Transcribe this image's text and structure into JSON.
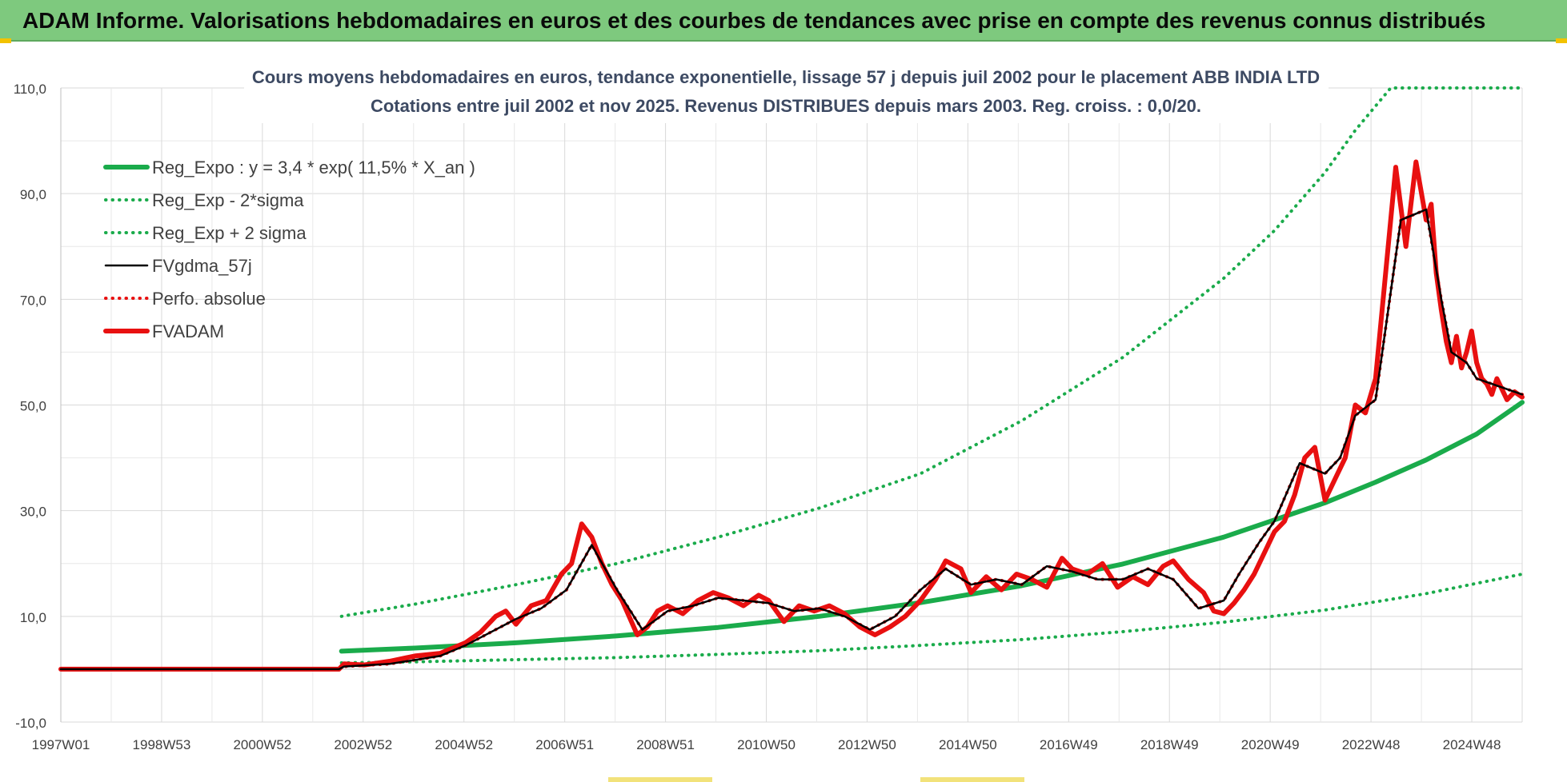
{
  "header": {
    "title": "ADAM Informe. Valorisations hebdomadaires en euros et des courbes de tendances avec prise en compte des revenus connus distribués"
  },
  "chart_data": {
    "type": "line",
    "title_line1": "Cours moyens hebdomadaires en euros, tendance exponentielle, lissage 57 j depuis juil 2002 pour le placement ABB INDIA LTD",
    "title_line2": "Cotations entre juil 2002 et nov 2025. Revenus DISTRIBUES depuis mars 2003. Reg. croiss. : 0,0/20.",
    "x_ticks": [
      "1997W01",
      "1998W53",
      "2000W52",
      "2002W52",
      "2004W52",
      "2006W51",
      "2008W51",
      "2010W50",
      "2012W50",
      "2014W50",
      "2016W49",
      "2018W49",
      "2020W49",
      "2022W48",
      "2024W48"
    ],
    "y_ticks": [
      "110,0",
      "90,0",
      "70,0",
      "50,0",
      "30,0",
      "10,0",
      "-10,0"
    ],
    "ylim": [
      -10,
      110
    ],
    "xlim": [
      1997.0,
      2025.9
    ],
    "grid": true,
    "legend_position": "top-left",
    "series": [
      {
        "name": "Reg_Expo : y = 3,4 * exp( 11,5% *  X_an )",
        "color": "#1aab4b",
        "style": "solid-thick",
        "x": [
          2002.55,
          2004.0,
          2006.0,
          2008.0,
          2010.0,
          2012.0,
          2014.0,
          2016.0,
          2018.0,
          2020.0,
          2022.0,
          2023.0,
          2024.0,
          2025.0,
          2025.9
        ],
        "y": [
          3.4,
          4.0,
          5.0,
          6.3,
          7.9,
          10.0,
          12.6,
          15.8,
          19.9,
          25.0,
          31.5,
          35.4,
          39.6,
          44.5,
          50.5
        ]
      },
      {
        "name": "Reg_Exp - 2*sigma",
        "color": "#1aab4b",
        "style": "dotted",
        "x": [
          2002.55,
          2004.0,
          2006.0,
          2008.0,
          2010.0,
          2012.0,
          2014.0,
          2016.0,
          2018.0,
          2020.0,
          2022.0,
          2024.0,
          2025.9
        ],
        "y": [
          1.2,
          1.4,
          1.8,
          2.2,
          2.8,
          3.5,
          4.5,
          5.6,
          7.1,
          8.9,
          11.2,
          14.3,
          18.0
        ]
      },
      {
        "name": "Reg_Exp + 2 sigma",
        "color": "#1aab4b",
        "style": "dotted",
        "x": [
          2002.55,
          2004.0,
          2006.0,
          2008.0,
          2010.0,
          2012.0,
          2014.0,
          2016.0,
          2018.0,
          2020.0,
          2021.0,
          2022.0,
          2022.6,
          2023.3,
          2025.9
        ],
        "y": [
          10.0,
          12.3,
          16.0,
          20.0,
          25.0,
          30.5,
          37.0,
          47.0,
          59.0,
          74.0,
          83.0,
          94.0,
          102.0,
          110.0,
          110.0
        ]
      },
      {
        "name": "FVgdma_57j",
        "color": "#000000",
        "style": "solid",
        "x": [
          1997.0,
          2002.5,
          2002.6,
          2003.5,
          2004.5,
          2005.0,
          2005.5,
          2006.0,
          2006.5,
          2007.0,
          2007.5,
          2008.0,
          2008.5,
          2009.0,
          2009.5,
          2010.0,
          2010.5,
          2011.0,
          2011.5,
          2012.0,
          2012.5,
          2013.0,
          2013.5,
          2014.0,
          2014.5,
          2015.0,
          2015.5,
          2016.0,
          2016.5,
          2017.0,
          2017.5,
          2018.0,
          2018.5,
          2019.0,
          2019.5,
          2020.0,
          2020.3,
          2020.7,
          2021.0,
          2021.5,
          2022.0,
          2022.3,
          2022.6,
          2023.0,
          2023.5,
          2024.0,
          2024.3,
          2024.5,
          2024.8,
          2025.0,
          2025.3,
          2025.6,
          2025.9
        ],
        "y": [
          0,
          0,
          0.5,
          1.0,
          2.5,
          4.5,
          7.0,
          9.5,
          11.5,
          15.0,
          23.5,
          15.0,
          7.5,
          11.0,
          12.0,
          13.5,
          13.0,
          12.5,
          11.0,
          11.5,
          10.0,
          7.5,
          10.0,
          15.0,
          19.0,
          16.0,
          17.0,
          16.0,
          19.5,
          18.5,
          17.0,
          17.0,
          19.0,
          17.0,
          11.5,
          13.0,
          18.0,
          24.0,
          28.0,
          39.0,
          37.0,
          40.0,
          48.0,
          51.0,
          85.0,
          87.0,
          70.0,
          60.0,
          58.0,
          55.0,
          54.0,
          53.0,
          52.0
        ]
      },
      {
        "name": "Perfo. absolue",
        "color": "#e81010",
        "style": "dotted",
        "x": [
          1997.0,
          2002.5,
          2002.6,
          2003.5,
          2004.5,
          2005.0,
          2005.5,
          2006.0,
          2006.5,
          2007.0,
          2007.5,
          2008.0,
          2008.5,
          2009.0,
          2009.5,
          2010.0,
          2010.5,
          2011.0,
          2011.5,
          2012.0,
          2012.5,
          2013.0,
          2013.5,
          2014.0,
          2014.5,
          2015.0,
          2015.5,
          2016.0,
          2016.5,
          2017.0,
          2017.5,
          2018.0,
          2018.5,
          2019.0,
          2019.5,
          2020.0,
          2020.3,
          2020.7,
          2021.0,
          2021.5,
          2022.0,
          2022.3,
          2022.6,
          2023.0,
          2023.5,
          2024.0,
          2024.3,
          2024.5,
          2024.8,
          2025.0,
          2025.3,
          2025.6,
          2025.9
        ],
        "y": [
          0,
          0,
          0.5,
          1.0,
          2.5,
          4.5,
          7.0,
          9.5,
          11.5,
          15.0,
          23.5,
          15.0,
          7.5,
          11.0,
          12.0,
          13.5,
          13.0,
          12.5,
          11.0,
          11.5,
          10.0,
          7.5,
          10.0,
          15.0,
          19.0,
          16.0,
          17.0,
          16.0,
          19.5,
          18.5,
          17.0,
          17.0,
          19.0,
          17.0,
          11.5,
          13.0,
          18.0,
          24.0,
          28.0,
          39.0,
          37.0,
          40.0,
          48.0,
          51.0,
          85.0,
          87.0,
          70.0,
          60.0,
          58.0,
          55.0,
          54.0,
          53.0,
          52.0
        ]
      },
      {
        "name": "FVADAM",
        "color": "#e81010",
        "style": "solid-thick",
        "x": [
          1997.0,
          2002.5,
          2002.6,
          2003.0,
          2003.5,
          2004.0,
          2004.5,
          2005.0,
          2005.3,
          2005.6,
          2005.8,
          2006.0,
          2006.3,
          2006.6,
          2006.9,
          2007.1,
          2007.3,
          2007.5,
          2007.7,
          2007.9,
          2008.1,
          2008.4,
          2008.6,
          2008.8,
          2009.0,
          2009.3,
          2009.6,
          2009.9,
          2010.2,
          2010.5,
          2010.8,
          2011.0,
          2011.3,
          2011.6,
          2011.9,
          2012.2,
          2012.5,
          2012.8,
          2013.1,
          2013.4,
          2013.7,
          2014.0,
          2014.3,
          2014.5,
          2014.8,
          2015.0,
          2015.3,
          2015.6,
          2015.9,
          2016.2,
          2016.5,
          2016.8,
          2017.0,
          2017.3,
          2017.6,
          2017.9,
          2018.2,
          2018.5,
          2018.8,
          2019.0,
          2019.3,
          2019.6,
          2019.8,
          2020.0,
          2020.2,
          2020.4,
          2020.6,
          2020.8,
          2021.0,
          2021.2,
          2021.4,
          2021.6,
          2021.8,
          2022.0,
          2022.2,
          2022.4,
          2022.6,
          2022.8,
          2023.0,
          2023.2,
          2023.4,
          2023.6,
          2023.8,
          2024.0,
          2024.1,
          2024.2,
          2024.3,
          2024.4,
          2024.5,
          2024.6,
          2024.7,
          2024.8,
          2024.9,
          2025.0,
          2025.1,
          2025.2,
          2025.3,
          2025.4,
          2025.5,
          2025.6,
          2025.75,
          2025.9
        ],
        "y": [
          0,
          0,
          1.0,
          0.8,
          1.5,
          2.5,
          3.0,
          5.0,
          7.0,
          10.0,
          11.0,
          8.5,
          12.0,
          13.0,
          18.0,
          20.0,
          27.5,
          25.0,
          20.0,
          16.0,
          13.0,
          6.5,
          8.0,
          11.0,
          12.0,
          10.5,
          13.0,
          14.5,
          13.5,
          12.0,
          14.0,
          13.0,
          9.0,
          12.0,
          11.0,
          12.0,
          10.5,
          8.0,
          6.5,
          8.0,
          10.0,
          13.0,
          17.0,
          20.5,
          19.0,
          14.5,
          17.5,
          15.0,
          18.0,
          17.0,
          15.5,
          21.0,
          19.0,
          18.0,
          20.0,
          15.5,
          17.5,
          16.0,
          19.5,
          20.5,
          17.0,
          14.5,
          11.0,
          10.5,
          12.5,
          15.0,
          18.0,
          22.0,
          26.0,
          28.0,
          33.0,
          40.0,
          42.0,
          32.0,
          36.0,
          40.0,
          50.0,
          48.5,
          55.0,
          75.0,
          95.0,
          80.0,
          96.0,
          85.0,
          88.0,
          75.0,
          68.0,
          62.0,
          58.0,
          63.0,
          57.0,
          60.0,
          64.0,
          58.0,
          55.0,
          54.0,
          52.0,
          55.0,
          53.0,
          51.0,
          52.5,
          51.5
        ]
      }
    ]
  }
}
